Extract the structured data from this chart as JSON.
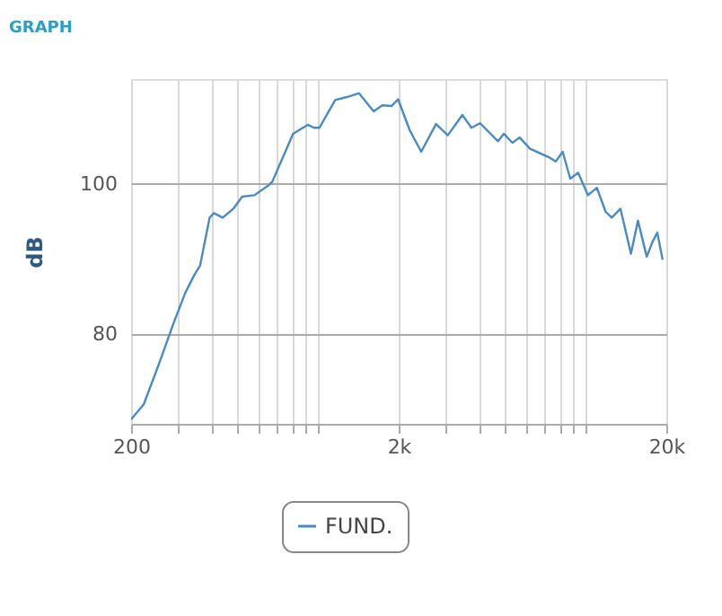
{
  "chart_data": {
    "type": "line",
    "title": "GRAPH",
    "ylabel": "dB",
    "x": [
      200,
      223,
      253,
      288,
      319,
      345,
      362,
      393,
      408,
      440,
      482,
      520,
      578,
      657,
      674,
      806,
      915,
      964,
      1011,
      1158,
      1282,
      1420,
      1612,
      1738,
      1878,
      1990,
      2196,
      2427,
      2757,
      3050,
      3460,
      3740,
      4030,
      4700,
      4940,
      5320,
      5660,
      6190,
      7340,
      7720,
      8200,
      8750,
      9360,
      10190,
      11000,
      11860,
      12500,
      13480,
      14750,
      15670,
      16900,
      17770,
      18510,
      19370
    ],
    "series": [
      {
        "name": "FUND.",
        "color": "#4a8ac4",
        "values": [
          68.6,
          70.6,
          75.8,
          81.4,
          85.5,
          87.9,
          89.1,
          95.5,
          96.1,
          95.5,
          96.7,
          98.3,
          98.5,
          99.9,
          100.3,
          106.7,
          107.9,
          107.5,
          107.5,
          111.2,
          111.6,
          112.1,
          109.7,
          110.5,
          110.4,
          111.3,
          107.2,
          104.3,
          108.0,
          106.5,
          109.2,
          107.5,
          108.1,
          105.7,
          106.7,
          105.5,
          106.2,
          104.7,
          103.5,
          103.0,
          104.3,
          100.7,
          101.5,
          98.5,
          99.5,
          96.3,
          95.5,
          96.7,
          90.7,
          95.1,
          90.3,
          92.3,
          93.5,
          89.9
        ]
      }
    ],
    "log": "x",
    "xlim": [
      200,
      20000
    ],
    "xticks": [
      200,
      {
        "value": 300,
        "label": null
      },
      {
        "value": 400,
        "label": null
      },
      {
        "value": 500,
        "label": null
      },
      {
        "value": 600,
        "label": null
      },
      {
        "value": 700,
        "label": null
      },
      {
        "value": 800,
        "label": null
      },
      {
        "value": 900,
        "label": null
      },
      {
        "value": 1000,
        "label": null
      },
      {
        "value": 2000,
        "label": "2k"
      },
      {
        "value": 3000,
        "label": null
      },
      {
        "value": 4000,
        "label": null
      },
      {
        "value": 5000,
        "label": null
      },
      {
        "value": 6000,
        "label": null
      },
      {
        "value": 7000,
        "label": null
      },
      {
        "value": 8000,
        "label": null
      },
      {
        "value": 9000,
        "label": null
      },
      {
        "value": 10000,
        "label": null
      },
      {
        "value": 20000,
        "label": "20k"
      }
    ],
    "ylim": [
      68,
      114
    ],
    "yticks": [
      80,
      100
    ],
    "grid": true,
    "legend": "bottom",
    "marker": "none",
    "line_style": "solid"
  }
}
